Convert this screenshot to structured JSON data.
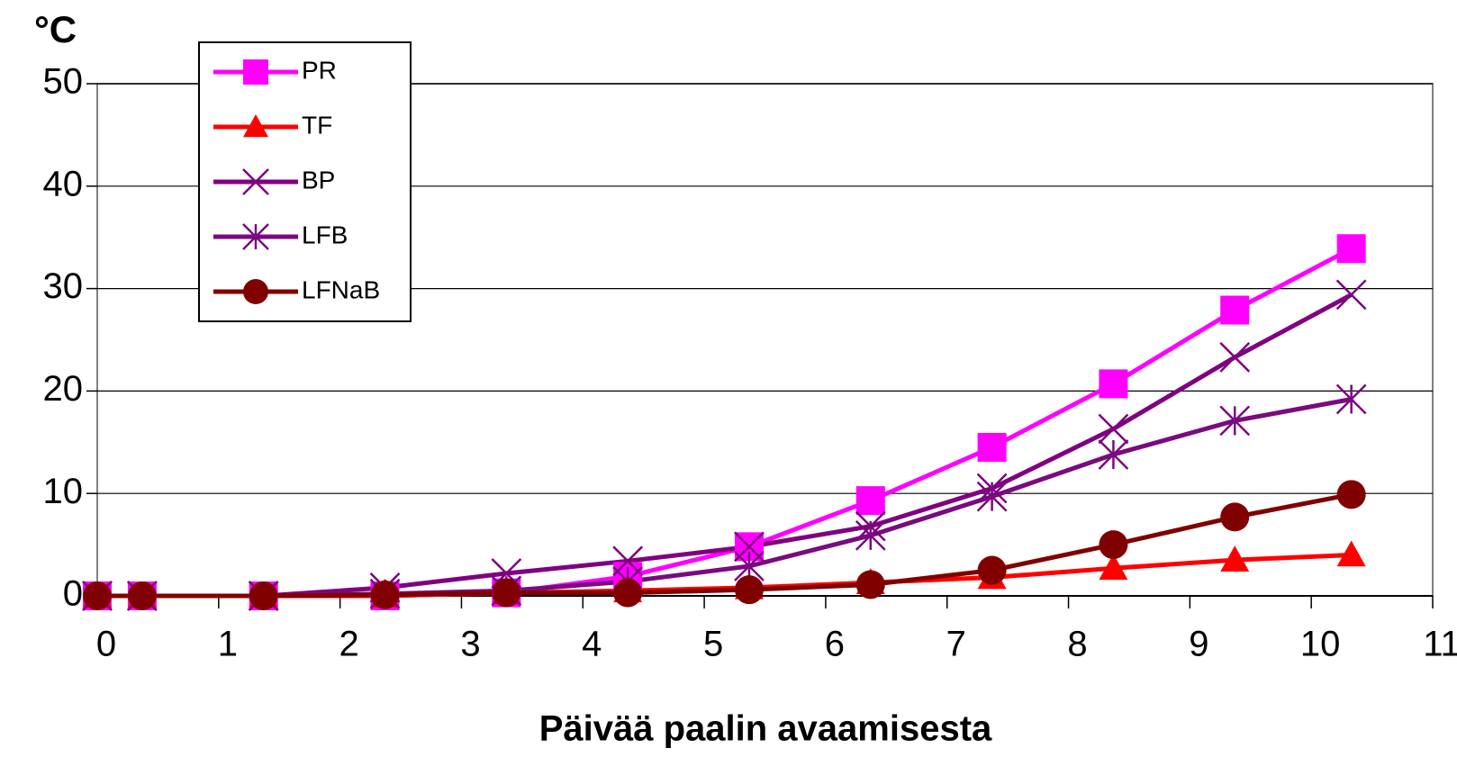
{
  "chart_data": {
    "type": "line",
    "y_label": "°C",
    "x_label": "Päivää paalin avaamisesta",
    "x": [
      0,
      0.37,
      1.37,
      2.37,
      3.37,
      4.37,
      5.37,
      6.37,
      7.37,
      8.37,
      9.37,
      10.33
    ],
    "series": [
      {
        "name": "PR",
        "color": "#ff00ff",
        "marker": "square",
        "values": [
          0,
          0,
          0,
          0,
          0.3,
          1.9,
          4.8,
          9.3,
          14.5,
          20.7,
          27.9,
          33.9
        ]
      },
      {
        "name": "TF",
        "color": "#ff0000",
        "marker": "triangle",
        "values": [
          0,
          0,
          0,
          0,
          0.3,
          0.5,
          0.8,
          1.3,
          1.8,
          2.7,
          3.5,
          4.0
        ]
      },
      {
        "name": "BP",
        "color": "#800080",
        "marker": "x",
        "values": [
          0,
          0,
          0,
          0.8,
          2.2,
          3.4,
          4.8,
          6.8,
          10.5,
          16.3,
          23.3,
          29.4
        ]
      },
      {
        "name": "LFB",
        "color": "#7a0a80",
        "marker": "asterisk",
        "values": [
          0,
          0,
          0,
          0.2,
          0.5,
          1.4,
          2.9,
          5.9,
          9.7,
          13.8,
          17.1,
          19.2
        ]
      },
      {
        "name": "LFNaB",
        "color": "#800000",
        "marker": "circle",
        "values": [
          0,
          0,
          0,
          0.1,
          0.3,
          0.3,
          0.6,
          1.1,
          2.5,
          5.0,
          7.7,
          9.9
        ]
      }
    ],
    "xlim": [
      0,
      11
    ],
    "xticks": [
      0,
      1,
      2,
      3,
      4,
      5,
      6,
      7,
      8,
      9,
      10,
      11
    ],
    "ylim": [
      0,
      50
    ],
    "yticks": [
      0,
      10,
      20,
      30,
      40,
      50
    ],
    "grid": true,
    "legend": "upper left"
  }
}
